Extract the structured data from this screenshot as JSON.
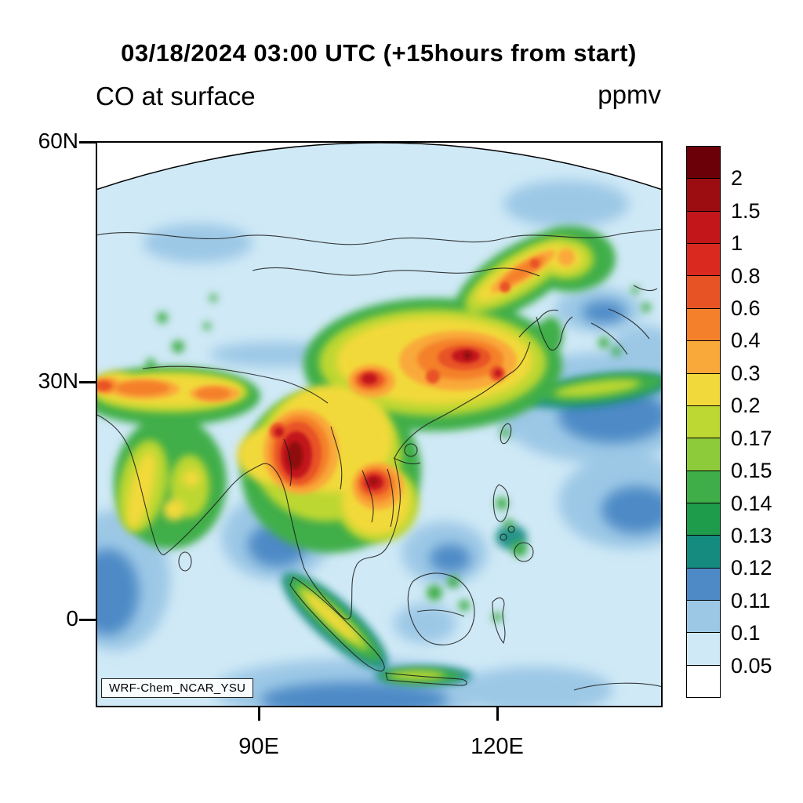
{
  "header": {
    "title": "03/18/2024 03:00 UTC (+15hours from start)",
    "variable_label": "CO at surface",
    "units_label": "ppmv"
  },
  "axes": {
    "y_ticks": [
      "60N",
      "30N",
      "0"
    ],
    "x_ticks": [
      "90E",
      "120E"
    ]
  },
  "colorbar": {
    "labels": [
      "2",
      "1.5",
      "1",
      "0.8",
      "0.6",
      "0.4",
      "0.3",
      "0.2",
      "0.17",
      "0.15",
      "0.14",
      "0.13",
      "0.12",
      "0.11",
      "0.1",
      "0.05"
    ],
    "colors": [
      "#6b0009",
      "#9c0d12",
      "#c2161b",
      "#da2a20",
      "#e85326",
      "#f4802b",
      "#f9a93a",
      "#f2d93b",
      "#bdd733",
      "#8ecb3a",
      "#3fae49",
      "#1f9b4c",
      "#158b80",
      "#4e8ac6",
      "#9cc8e6",
      "#cfe9f6",
      "#ffffff"
    ]
  },
  "annotations": {
    "model_label": "WRF-Chem_NCAR_YSU"
  },
  "chart_data": {
    "type": "heatmap",
    "title": "03/18/2024 03:00 UTC (+15hours from start)",
    "subtitle": "CO at surface",
    "variable": "CO",
    "level": "surface",
    "units": "ppmv",
    "model_label": "WRF-Chem_NCAR_YSU",
    "x_tick_labels": [
      "90E",
      "120E"
    ],
    "y_tick_labels": [
      "60N",
      "30N",
      "0"
    ],
    "contour_levels": [
      0.05,
      0.1,
      0.11,
      0.12,
      0.13,
      0.14,
      0.15,
      0.17,
      0.2,
      0.3,
      0.4,
      0.6,
      0.8,
      1,
      1.5,
      2
    ],
    "palette": [
      "#6b0009",
      "#9c0d12",
      "#c2161b",
      "#da2a20",
      "#e85326",
      "#f4802b",
      "#f9a93a",
      "#f2d93b",
      "#bdd733",
      "#8ecb3a",
      "#3fae49",
      "#1f9b4c",
      "#158b80",
      "#4e8ac6",
      "#9cc8e6",
      "#cfe9f6",
      "#ffffff"
    ],
    "legend_position": "right",
    "grid": false
  }
}
